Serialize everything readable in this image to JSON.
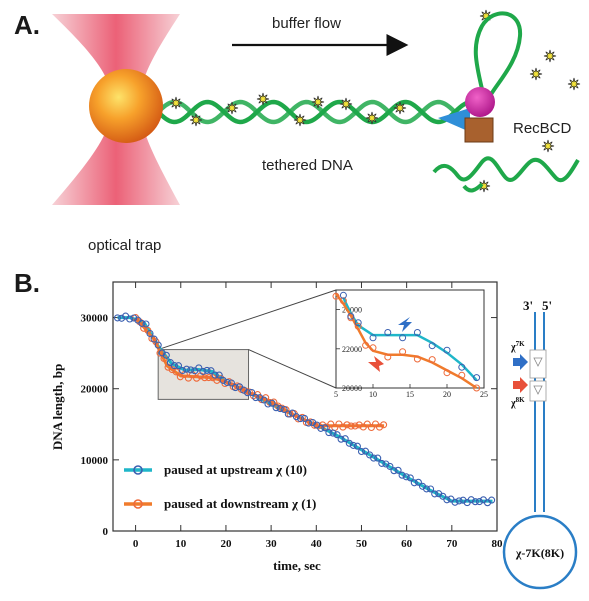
{
  "panel_a": {
    "label": "A.",
    "buffer_flow": "buffer flow",
    "tethered_dna": "tethered DNA",
    "enzyme": "RecBCD",
    "optical_trap": "optical trap"
  },
  "panel_b": {
    "label": "B.",
    "schematic": {
      "strand_3": "3'",
      "strand_5": "5'",
      "chi_upper": "χ",
      "chi_upper_sup": "7K",
      "chi_lower": "χ",
      "chi_lower_sup": "8K",
      "circle_label": "χ-7K(8K)"
    }
  },
  "colors": {
    "upstream": "#3a5fb0",
    "upstream_fit": "#1fb6c9",
    "downstream": "#ee6a3a",
    "downstream_fit": "#f07b2c",
    "dna": "#1fa84a",
    "schematic": "#2a7ec6"
  },
  "chart_data": [
    {
      "type": "scatter",
      "xlabel": "time, sec",
      "ylabel": "DNA length, bp",
      "xlim": [
        -5,
        80
      ],
      "ylim": [
        0,
        35000
      ],
      "x_ticks": [
        "0",
        "10",
        "20",
        "30",
        "40",
        "50",
        "60",
        "70",
        "80"
      ],
      "y_ticks": [
        "0",
        "10000",
        "20000",
        "30000"
      ],
      "legend_position": "bottom-left",
      "series": [
        {
          "name": "paused at upstream χ (10)",
          "color": "#3a5fb0",
          "fit_color": "#1fb6c9",
          "points": [
            [
              -4,
              30000
            ],
            [
              -1,
              30000
            ],
            [
              2,
              29200
            ],
            [
              5,
              26000
            ],
            [
              8,
              23500
            ],
            [
              11,
              22600
            ],
            [
              14,
              22700
            ],
            [
              17,
              22400
            ],
            [
              20,
              21000
            ],
            [
              25,
              19500
            ],
            [
              30,
              17800
            ],
            [
              35,
              16300
            ],
            [
              40,
              14900
            ],
            [
              45,
              13300
            ],
            [
              50,
              11400
            ],
            [
              55,
              9500
            ],
            [
              60,
              7600
            ],
            [
              65,
              5800
            ],
            [
              70,
              4200
            ],
            [
              75,
              4200
            ],
            [
              79,
              4200
            ]
          ]
        },
        {
          "name": "paused at downstream χ (1)",
          "color": "#ee6a3a",
          "fit_color": "#f07b2c",
          "points": [
            [
              0,
              30000
            ],
            [
              4,
              27000
            ],
            [
              7,
              23200
            ],
            [
              10,
              21800
            ],
            [
              13,
              21700
            ],
            [
              16,
              21600
            ],
            [
              19,
              21200
            ],
            [
              22,
              20400
            ],
            [
              26,
              19200
            ],
            [
              30,
              18200
            ],
            [
              35,
              16300
            ],
            [
              40,
              14800
            ],
            [
              45,
              14800
            ],
            [
              50,
              14800
            ],
            [
              55,
              14800
            ]
          ]
        }
      ]
    },
    {
      "type": "scatter",
      "xlim": [
        5,
        25
      ],
      "ylim": [
        20000,
        25000
      ],
      "x_ticks": [
        "5",
        "10",
        "15",
        "20",
        "25"
      ],
      "y_ticks": [
        "20000",
        "22000",
        "24000"
      ],
      "series": [
        {
          "name": "upstream",
          "points": [
            [
              6,
              24600
            ],
            [
              7,
              23800
            ],
            [
              8,
              23200
            ],
            [
              10,
              22700
            ],
            [
              12,
              22700
            ],
            [
              14,
              22700
            ],
            [
              16,
              22700
            ],
            [
              18,
              22300
            ],
            [
              20,
              21800
            ],
            [
              22,
              21200
            ],
            [
              24,
              20400
            ]
          ]
        },
        {
          "name": "downstream",
          "points": [
            [
              5,
              24800
            ],
            [
              6,
              24300
            ],
            [
              7,
              23700
            ],
            [
              8,
              23000
            ],
            [
              9,
              22300
            ],
            [
              10,
              21900
            ],
            [
              12,
              21700
            ],
            [
              14,
              21700
            ],
            [
              16,
              21600
            ],
            [
              18,
              21300
            ],
            [
              20,
              20900
            ],
            [
              22,
              20500
            ],
            [
              24,
              20000
            ]
          ]
        }
      ]
    }
  ]
}
